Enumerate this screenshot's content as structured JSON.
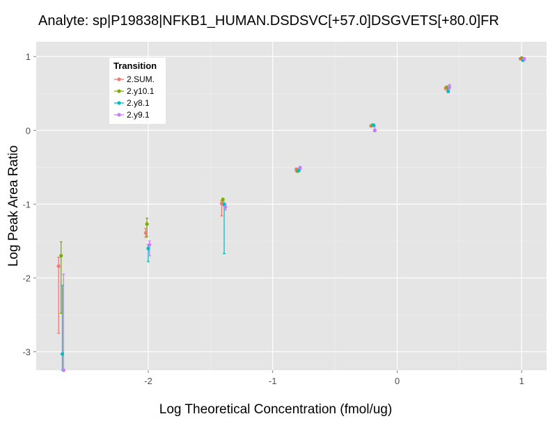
{
  "chart_data": {
    "type": "scatter",
    "title": "Analyte: sp|P19838|NFKB1_HUMAN.DSDSVC[+57.0]DSGVETS[+80.0]FR",
    "xlabel": "Log Theoretical Concentration (fmol/ug)",
    "ylabel": "Log Peak Area Ratio",
    "xlim": [
      -2.9,
      1.2
    ],
    "ylim": [
      -3.25,
      1.2
    ],
    "x_ticks": [
      -2,
      -1,
      0,
      1
    ],
    "y_ticks": [
      -3,
      -2,
      -1,
      0,
      1
    ],
    "x_tick_labels": [
      "-2",
      "-1",
      "0",
      "1"
    ],
    "y_tick_labels": [
      "-3",
      "-2",
      "-1",
      "0",
      "1"
    ],
    "grid": true,
    "legend": {
      "title": "Transition",
      "placement": "top-left",
      "entries": [
        "2.SUM.",
        "2.y10.1",
        "2.y8.1",
        "2.y9.1"
      ]
    },
    "series": [
      {
        "name": "2.SUM.",
        "color": "#F8766D",
        "points": [
          {
            "x": -2.72,
            "y": -1.84,
            "err_low": -2.75,
            "err_high": -1.72
          },
          {
            "x": -2.02,
            "y": -1.39,
            "err_low": -1.45,
            "err_high": -1.33
          },
          {
            "x": -1.41,
            "y": -0.99,
            "err_low": -1.16,
            "err_high": -0.95
          },
          {
            "x": -0.81,
            "y": -0.53,
            "err_low": -0.56,
            "err_high": -0.51
          },
          {
            "x": -0.21,
            "y": 0.06,
            "err_low": 0.05,
            "err_high": 0.07
          },
          {
            "x": 0.39,
            "y": 0.57,
            "err_low": 0.55,
            "err_high": 0.59
          },
          {
            "x": 0.99,
            "y": 0.97,
            "err_low": 0.96,
            "err_high": 0.98
          }
        ]
      },
      {
        "name": "2.y10.1",
        "color": "#7CAE00",
        "points": [
          {
            "x": -2.7,
            "y": -1.7,
            "err_low": -2.48,
            "err_high": -1.51
          },
          {
            "x": -2.01,
            "y": -1.27,
            "err_low": -1.44,
            "err_high": -1.19
          },
          {
            "x": -1.4,
            "y": -0.94,
            "err_low": -1.0,
            "err_high": -0.92
          },
          {
            "x": -0.8,
            "y": -0.55,
            "err_low": -0.57,
            "err_high": -0.53
          },
          {
            "x": -0.2,
            "y": 0.07,
            "err_low": 0.06,
            "err_high": 0.08
          },
          {
            "x": 0.4,
            "y": 0.58,
            "err_low": 0.56,
            "err_high": 0.6
          },
          {
            "x": 1.0,
            "y": 0.98,
            "err_low": 0.97,
            "err_high": 0.99
          }
        ]
      },
      {
        "name": "2.y8.1",
        "color": "#00BFC4",
        "points": [
          {
            "x": -2.69,
            "y": -3.03,
            "err_low": -3.25,
            "err_high": -2.1
          },
          {
            "x": -2.0,
            "y": -1.6,
            "err_low": -1.78,
            "err_high": -1.55
          },
          {
            "x": -1.39,
            "y": -1.01,
            "err_low": -1.67,
            "err_high": -0.98
          },
          {
            "x": -0.79,
            "y": -0.54,
            "err_low": -0.56,
            "err_high": -0.52
          },
          {
            "x": -0.19,
            "y": 0.07,
            "err_low": 0.05,
            "err_high": 0.08
          },
          {
            "x": 0.41,
            "y": 0.53,
            "err_low": 0.51,
            "err_high": 0.56
          },
          {
            "x": 1.01,
            "y": 0.95,
            "err_low": 0.94,
            "err_high": 0.97
          }
        ]
      },
      {
        "name": "2.y9.1",
        "color": "#C77CFF",
        "points": [
          {
            "x": -2.68,
            "y": -3.25,
            "err_low": -3.25,
            "err_high": -1.95
          },
          {
            "x": -1.99,
            "y": -1.55,
            "err_low": -1.7,
            "err_high": -1.5
          },
          {
            "x": -1.38,
            "y": -1.04,
            "err_low": -1.08,
            "err_high": -1.0
          },
          {
            "x": -0.78,
            "y": -0.51,
            "err_low": -0.53,
            "err_high": -0.49
          },
          {
            "x": -0.18,
            "y": 0.0,
            "err_low": -0.02,
            "err_high": 0.06
          },
          {
            "x": 0.42,
            "y": 0.59,
            "err_low": 0.56,
            "err_high": 0.62
          },
          {
            "x": 1.02,
            "y": 0.97,
            "err_low": 0.95,
            "err_high": 0.98
          }
        ]
      }
    ]
  }
}
